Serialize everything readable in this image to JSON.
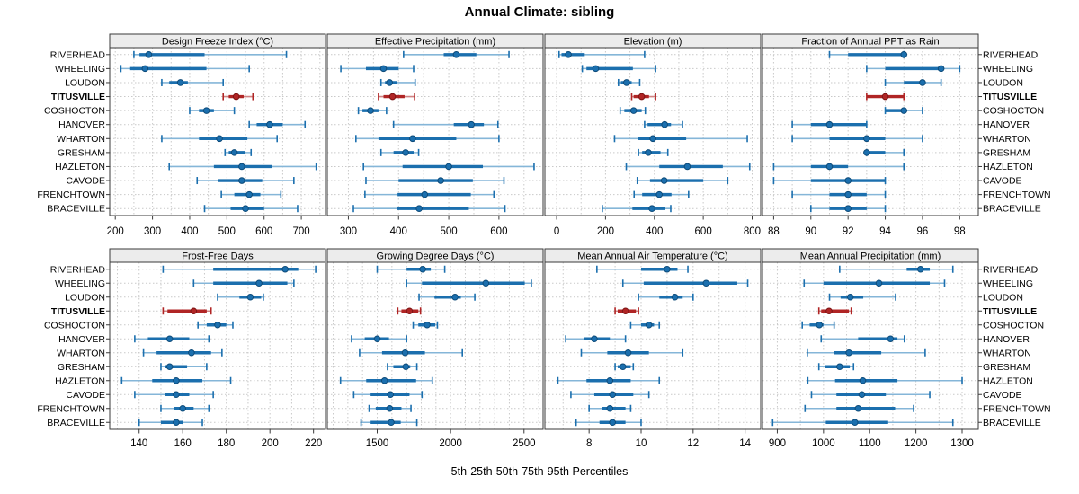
{
  "chart_data": {
    "type": "trellis-dotplot",
    "title": "Annual Climate: sibling",
    "caption": "5th-25th-50th-75th-95th Percentiles",
    "percentile_labels": [
      "5th",
      "25th",
      "50th",
      "75th",
      "95th"
    ],
    "sites": [
      "RIVERHEAD",
      "WHEELING",
      "LOUDON",
      "TITUSVILLE",
      "COSHOCTON",
      "HANOVER",
      "WHARTON",
      "GRESHAM",
      "HAZLETON",
      "CAVODE",
      "FRENCHTOWN",
      "BRACEVILLE"
    ],
    "highlight_site": "TITUSVILLE",
    "legend_position": "none",
    "grid": "dotted",
    "colors": {
      "series": "#1b6fae",
      "series_light": "#85b6d8",
      "series_dark": "#0d4a78",
      "highlight": "#b02525",
      "highlight_light": "#d republican",
      "highlight_whisker": "#cf8383",
      "highlight_dark": "#7c1414",
      "strip_bg": "#ececec",
      "grid_line": "#c9c9c9",
      "panel_border": "#3a3a3a",
      "text": "#000000"
    },
    "panels": [
      {
        "title": "Design Freeze Index (°C)",
        "row": 0,
        "col": 0,
        "xlim": [
          185,
          765
        ],
        "ticks": [
          200,
          300,
          400,
          500,
          600,
          700
        ],
        "minor_step": 50,
        "values": {
          "RIVERHEAD": [
            250,
            265,
            290,
            440,
            660
          ],
          "WHEELING": [
            215,
            240,
            280,
            445,
            560
          ],
          "LOUDON": [
            325,
            345,
            375,
            395,
            490
          ],
          "TITUSVILLE": [
            490,
            505,
            525,
            545,
            570
          ],
          "COSHOCTON": [
            400,
            425,
            445,
            465,
            520
          ],
          "HANOVER": [
            560,
            580,
            615,
            650,
            710
          ],
          "WHARTON": [
            325,
            425,
            480,
            555,
            635
          ],
          "GRESHAM": [
            495,
            505,
            520,
            550,
            565
          ],
          "HAZLETON": [
            345,
            465,
            540,
            620,
            740
          ],
          "CAVODE": [
            420,
            475,
            540,
            595,
            680
          ],
          "FRENCHTOWN": [
            485,
            520,
            560,
            590,
            645
          ],
          "BRACEVILLE": [
            440,
            510,
            550,
            600,
            690
          ]
        }
      },
      {
        "title": "Effective Precipitation (mm)",
        "row": 0,
        "col": 1,
        "xlim": [
          258,
          688
        ],
        "ticks": [
          300,
          400,
          500,
          600
        ],
        "minor_step": 50,
        "values": {
          "RIVERHEAD": [
            410,
            490,
            515,
            555,
            620
          ],
          "WHEELING": [
            285,
            335,
            370,
            400,
            430
          ],
          "LOUDON": [
            365,
            373,
            382,
            396,
            433
          ],
          "TITUSVILLE": [
            360,
            370,
            388,
            412,
            432
          ],
          "COSHOCTON": [
            320,
            328,
            344,
            360,
            376
          ],
          "HANOVER": [
            390,
            510,
            545,
            570,
            598
          ],
          "WHARTON": [
            315,
            360,
            428,
            515,
            600
          ],
          "GRESHAM": [
            365,
            390,
            414,
            430,
            440
          ],
          "HAZLETON": [
            330,
            408,
            500,
            568,
            670
          ],
          "CAVODE": [
            335,
            400,
            484,
            548,
            610
          ],
          "FRENCHTOWN": [
            333,
            398,
            452,
            544,
            590
          ],
          "BRACEVILLE": [
            310,
            396,
            441,
            540,
            612
          ]
        }
      },
      {
        "title": "Elevation (m)",
        "row": 0,
        "col": 2,
        "xlim": [
          -48,
          835
        ],
        "ticks": [
          0,
          200,
          400,
          600,
          800
        ],
        "minor_step": 100,
        "values": {
          "RIVERHEAD": [
            10,
            20,
            48,
            115,
            360
          ],
          "WHEELING": [
            105,
            122,
            160,
            312,
            405
          ],
          "LOUDON": [
            253,
            263,
            286,
            307,
            340
          ],
          "TITUSVILLE": [
            307,
            315,
            348,
            378,
            405
          ],
          "COSHOCTON": [
            260,
            277,
            315,
            348,
            363
          ],
          "HANOVER": [
            360,
            372,
            442,
            468,
            515
          ],
          "WHARTON": [
            237,
            333,
            394,
            530,
            780
          ],
          "GRESHAM": [
            335,
            350,
            375,
            425,
            455
          ],
          "HAZLETON": [
            285,
            420,
            535,
            680,
            790
          ],
          "CAVODE": [
            330,
            382,
            440,
            600,
            700
          ],
          "FRENCHTOWN": [
            317,
            350,
            420,
            470,
            540
          ],
          "BRACEVILLE": [
            187,
            310,
            390,
            445,
            467
          ]
        }
      },
      {
        "title": "Fraction of Annual PPT as Rain",
        "row": 0,
        "col": 3,
        "xlim": [
          87.4,
          99.0
        ],
        "ticks": [
          88,
          90,
          92,
          94,
          96,
          98
        ],
        "minor_step": 1,
        "values": {
          "RIVERHEAD": [
            91,
            92,
            95,
            95,
            95
          ],
          "WHEELING": [
            93,
            94,
            97,
            97,
            98
          ],
          "LOUDON": [
            94,
            95,
            96,
            96,
            97
          ],
          "TITUSVILLE": [
            93,
            93,
            94,
            95,
            95
          ],
          "COSHOCTON": [
            94,
            94,
            95,
            95,
            96
          ],
          "HANOVER": [
            89,
            90,
            91,
            93,
            93
          ],
          "WHARTON": [
            89,
            91,
            93,
            94,
            96
          ],
          "GRESHAM": [
            93,
            93,
            93,
            94,
            95
          ],
          "HAZLETON": [
            88,
            90,
            91,
            92,
            95
          ],
          "CAVODE": [
            88,
            90,
            92,
            94,
            94
          ],
          "FRENCHTOWN": [
            89,
            91,
            92,
            93,
            94
          ],
          "BRACEVILLE": [
            90,
            91,
            92,
            93,
            94
          ]
        }
      },
      {
        "title": "Frost-Free Days",
        "row": 1,
        "col": 0,
        "xlim": [
          126.5,
          225.5
        ],
        "ticks": [
          140,
          160,
          180,
          200,
          220
        ],
        "minor_step": 10,
        "values": {
          "RIVERHEAD": [
            151,
            174,
            207,
            213,
            221
          ],
          "WHEELING": [
            165,
            174,
            195,
            208,
            211
          ],
          "LOUDON": [
            176,
            186,
            191,
            196,
            197
          ],
          "TITUSVILLE": [
            151,
            153,
            165,
            171,
            173
          ],
          "COSHOCTON": [
            167,
            171,
            176,
            180,
            183
          ],
          "HANOVER": [
            138,
            144,
            154,
            163,
            172
          ],
          "WHARTON": [
            142,
            148,
            164,
            173,
            178
          ],
          "GRESHAM": [
            150,
            152,
            154,
            162,
            171
          ],
          "HAZLETON": [
            132,
            146,
            157,
            169,
            182
          ],
          "CAVODE": [
            138,
            152,
            157,
            163,
            174
          ],
          "FRENCHTOWN": [
            150,
            156,
            160,
            165,
            172
          ],
          "BRACEVILLE": [
            140,
            150,
            157,
            160,
            169
          ]
        }
      },
      {
        "title": "Growing Degree Days (°C)",
        "row": 1,
        "col": 1,
        "xlim": [
          1160,
          2630
        ],
        "ticks": [
          1500,
          2000,
          2500
        ],
        "minor_step": 100,
        "values": {
          "RIVERHEAD": [
            1500,
            1700,
            1810,
            1865,
            1960
          ],
          "WHEELING": [
            1700,
            1805,
            2240,
            2505,
            2550
          ],
          "LOUDON": [
            1785,
            1890,
            2030,
            2070,
            2165
          ],
          "TITUSVILLE": [
            1640,
            1665,
            1720,
            1780,
            1795
          ],
          "COSHOCTON": [
            1745,
            1780,
            1840,
            1895,
            1910
          ],
          "HANOVER": [
            1325,
            1415,
            1500,
            1580,
            1700
          ],
          "WHARTON": [
            1380,
            1533,
            1690,
            1825,
            2080
          ],
          "GRESHAM": [
            1570,
            1610,
            1695,
            1725,
            1770
          ],
          "HAZLETON": [
            1250,
            1425,
            1550,
            1765,
            1875
          ],
          "CAVODE": [
            1340,
            1455,
            1590,
            1720,
            1805
          ],
          "FRENCHTOWN": [
            1445,
            1490,
            1585,
            1665,
            1730
          ],
          "BRACEVILLE": [
            1390,
            1455,
            1595,
            1660,
            1770
          ]
        }
      },
      {
        "title": "Mean Annual Air Temperature (°C)",
        "row": 1,
        "col": 2,
        "xlim": [
          6.3,
          14.6
        ],
        "ticks": [
          8,
          10,
          12,
          14
        ],
        "minor_step": 1,
        "values": {
          "RIVERHEAD": [
            8.3,
            10.0,
            11.0,
            11.4,
            11.8
          ],
          "WHEELING": [
            9.3,
            10.1,
            12.5,
            13.7,
            14.1
          ],
          "LOUDON": [
            9.9,
            10.7,
            11.3,
            11.6,
            12.0
          ],
          "TITUSVILLE": [
            9.0,
            9.1,
            9.4,
            9.8,
            9.9
          ],
          "COSHOCTON": [
            9.6,
            10.0,
            10.3,
            10.5,
            10.7
          ],
          "HANOVER": [
            7.1,
            7.8,
            8.2,
            8.8,
            9.4
          ],
          "WHARTON": [
            7.7,
            8.7,
            9.5,
            10.3,
            11.6
          ],
          "GRESHAM": [
            9.0,
            9.1,
            9.3,
            9.6,
            9.7
          ],
          "HAZLETON": [
            6.8,
            7.9,
            8.8,
            9.6,
            10.7
          ],
          "CAVODE": [
            7.3,
            8.2,
            8.9,
            9.7,
            10.3
          ],
          "FRENCHTOWN": [
            8.0,
            8.5,
            8.8,
            9.4,
            9.6
          ],
          "BRACEVILLE": [
            7.5,
            8.4,
            8.9,
            9.4,
            10.0
          ]
        }
      },
      {
        "title": "Mean Annual Precipitation (mm)",
        "row": 1,
        "col": 3,
        "xlim": [
          868,
          1335
        ],
        "ticks": [
          900,
          1000,
          1100,
          1200,
          1300
        ],
        "minor_step": 50,
        "values": {
          "RIVERHEAD": [
            1035,
            1180,
            1210,
            1230,
            1280
          ],
          "WHEELING": [
            958,
            1000,
            1120,
            1230,
            1262
          ],
          "LOUDON": [
            1013,
            1037,
            1058,
            1086,
            1156
          ],
          "TITUSVILLE": [
            990,
            995,
            1012,
            1055,
            1060
          ],
          "COSHOCTON": [
            954,
            970,
            991,
            1000,
            1023
          ],
          "HANOVER": [
            995,
            1075,
            1145,
            1160,
            1175
          ],
          "WHARTON": [
            965,
            1022,
            1055,
            1125,
            1220
          ],
          "GRESHAM": [
            990,
            1003,
            1035,
            1057,
            1065
          ],
          "HAZLETON": [
            966,
            1025,
            1085,
            1160,
            1300
          ],
          "CAVODE": [
            974,
            1028,
            1083,
            1135,
            1230
          ],
          "FRENCHTOWN": [
            960,
            1028,
            1075,
            1155,
            1195
          ],
          "BRACEVILLE": [
            890,
            1005,
            1068,
            1140,
            1280
          ]
        }
      }
    ]
  }
}
